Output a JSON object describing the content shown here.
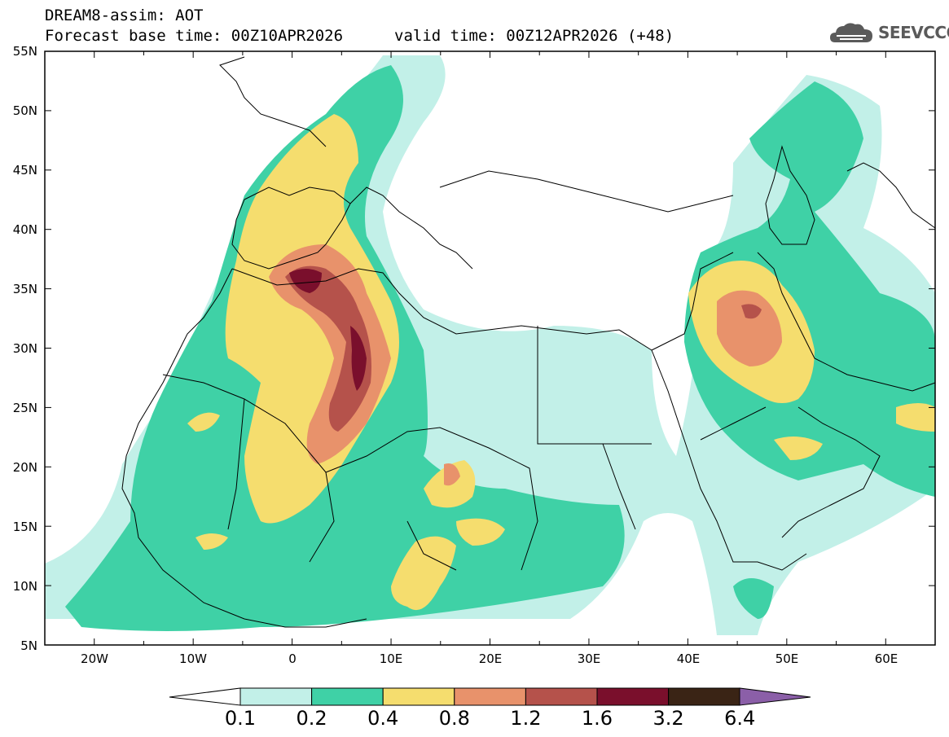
{
  "header": {
    "line1": "DREAM8-assim: AOT",
    "line2": "Forecast base time: 00Z10APR2026",
    "valid": "valid time: 00Z12APR2026 (+48)",
    "logo_text": "SEEVCCC"
  },
  "map": {
    "lat_labels": [
      "55N",
      "50N",
      "45N",
      "40N",
      "35N",
      "30N",
      "25N",
      "20N",
      "15N",
      "10N",
      "5N"
    ],
    "lon_labels": [
      "20W",
      "10W",
      "0",
      "10E",
      "20E",
      "30E",
      "40E",
      "50E",
      "60E"
    ],
    "lon_range": [
      -25,
      65
    ],
    "lat_range": [
      5,
      55
    ],
    "icon": "cloud-logo-icon"
  },
  "colorbar": {
    "labels": [
      "0.1",
      "0.2",
      "0.4",
      "0.8",
      "1.2",
      "1.6",
      "3.2",
      "6.4"
    ],
    "colors": [
      "#c2f0e8",
      "#3fd1a6",
      "#f5dd6e",
      "#e8926b",
      "#b5524b",
      "#7a0f2c",
      "#3a2415",
      "#8b5fa8"
    ]
  }
}
